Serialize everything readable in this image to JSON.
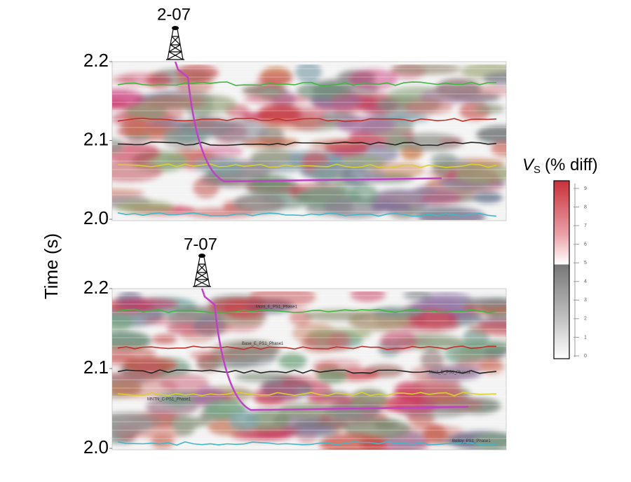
{
  "figure": {
    "y_axis_label": "Time (s)",
    "panels": [
      {
        "well": "2-07",
        "ylim": [
          2.0,
          2.2
        ],
        "yticks": [
          {
            "value": 2.0,
            "label": "2.0"
          },
          {
            "value": 2.1,
            "label": "2.1"
          },
          {
            "value": 2.2,
            "label": "2.2"
          }
        ],
        "horizon_labels": []
      },
      {
        "well": "7-07",
        "ylim": [
          2.0,
          2.2
        ],
        "yticks": [
          {
            "value": 2.0,
            "label": "2.0"
          },
          {
            "value": 2.1,
            "label": "2.1"
          },
          {
            "value": 2.2,
            "label": "2.2"
          }
        ],
        "horizon_labels": [
          "Mont_E_PS1_Phase1",
          "Base_E_PS1_Phase1",
          "Mont_D_PS1_Phase1",
          "MNTN_C-PS1_Phase1",
          "Belloy_PS1_Phase1"
        ]
      }
    ],
    "colorbar": {
      "symbol": "V",
      "subscript": "S",
      "label": "(% diff)",
      "lim": [
        0,
        9.3
      ],
      "ticks": [
        0,
        1,
        2,
        3,
        4,
        5,
        6,
        7,
        8,
        9
      ]
    }
  }
}
